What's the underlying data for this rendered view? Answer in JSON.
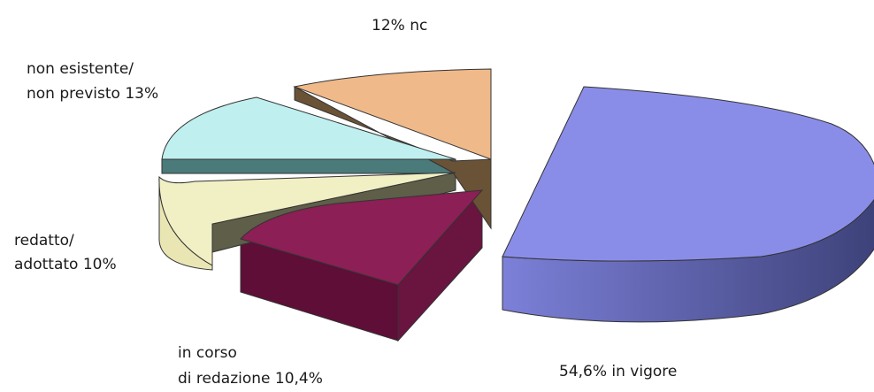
{
  "chart_data": {
    "type": "pie",
    "style": "3d-exploded",
    "title": "",
    "slices": [
      {
        "label": "in vigore",
        "value": 54.6,
        "display": "54,6%  in vigore",
        "color": "#8a8de8"
      },
      {
        "label": "in corso di redazione",
        "value": 10.4,
        "display_lines": [
          "in corso",
          "di redazione  10,4%"
        ],
        "color": "#8c1f55"
      },
      {
        "label": "redatto/adottato",
        "value": 10,
        "display_lines": [
          "redatto/",
          "adottato  10%"
        ],
        "color": "#f1efc4"
      },
      {
        "label": "non esistente/non previsto",
        "value": 13,
        "display_lines": [
          "non esistente/",
          "non previsto  13%"
        ],
        "color": "#bfefef"
      },
      {
        "label": "nc",
        "value": 12,
        "display": "12% nc",
        "color": "#f0b98a"
      }
    ]
  }
}
